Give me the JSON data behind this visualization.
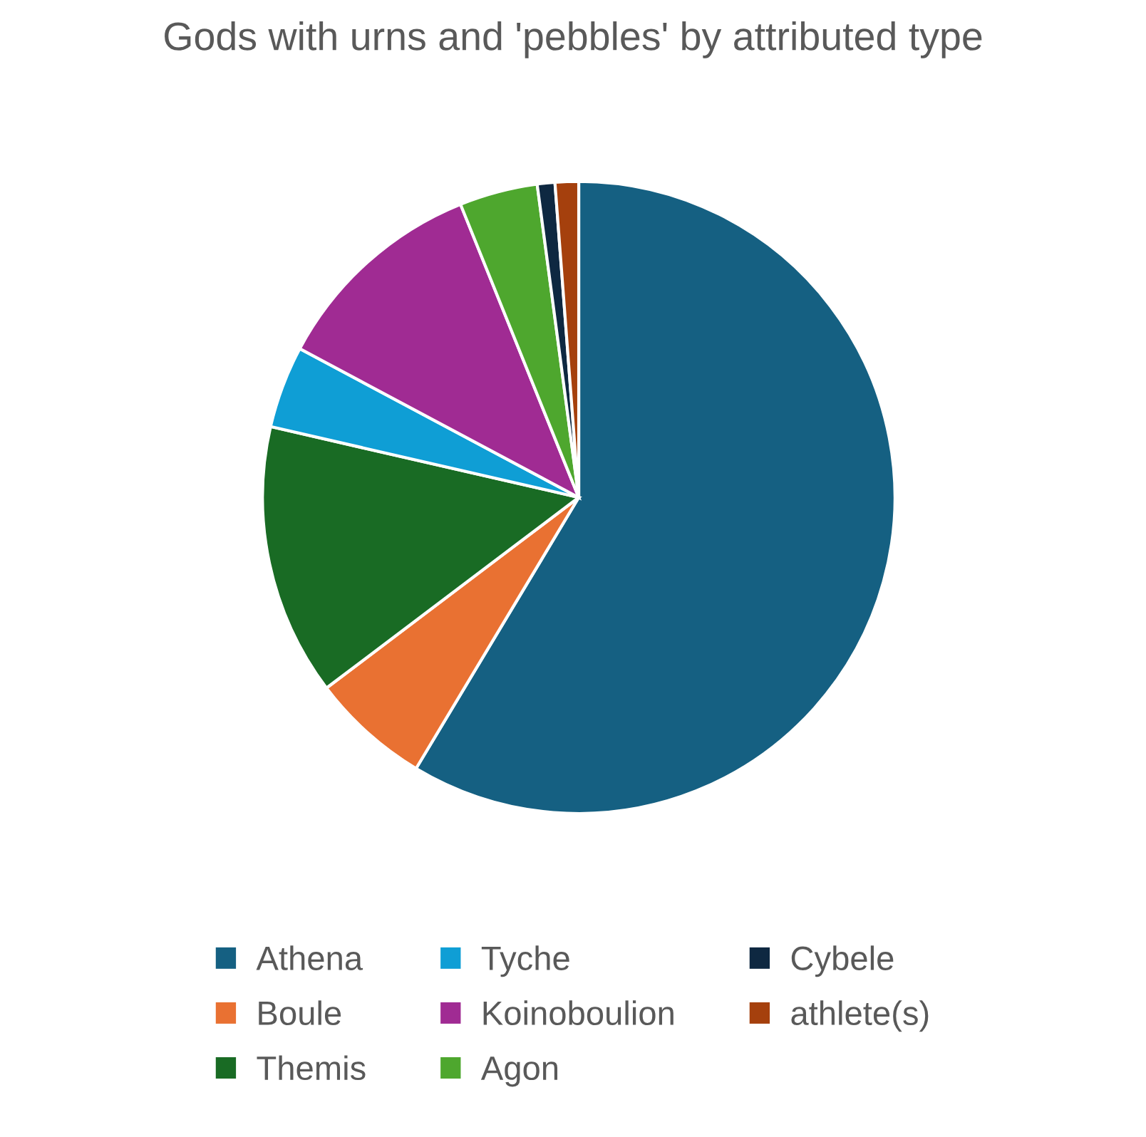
{
  "chart_data": {
    "type": "pie",
    "title": "Gods with urns and 'pebbles' by attributed type",
    "categories": [
      "Athena",
      "Boule",
      "Themis",
      "Tyche",
      "Koinoboulion",
      "Agon",
      "Cybele",
      "athlete(s)"
    ],
    "values": [
      58.6,
      6.1,
      13.9,
      4.2,
      11.1,
      4.0,
      0.9,
      1.2
    ],
    "colors": [
      "#156082",
      "#e97132",
      "#196b24",
      "#0f9ed5",
      "#a02b93",
      "#4ea72e",
      "#0e2841",
      "#a5400d"
    ],
    "legend": "bottom"
  }
}
